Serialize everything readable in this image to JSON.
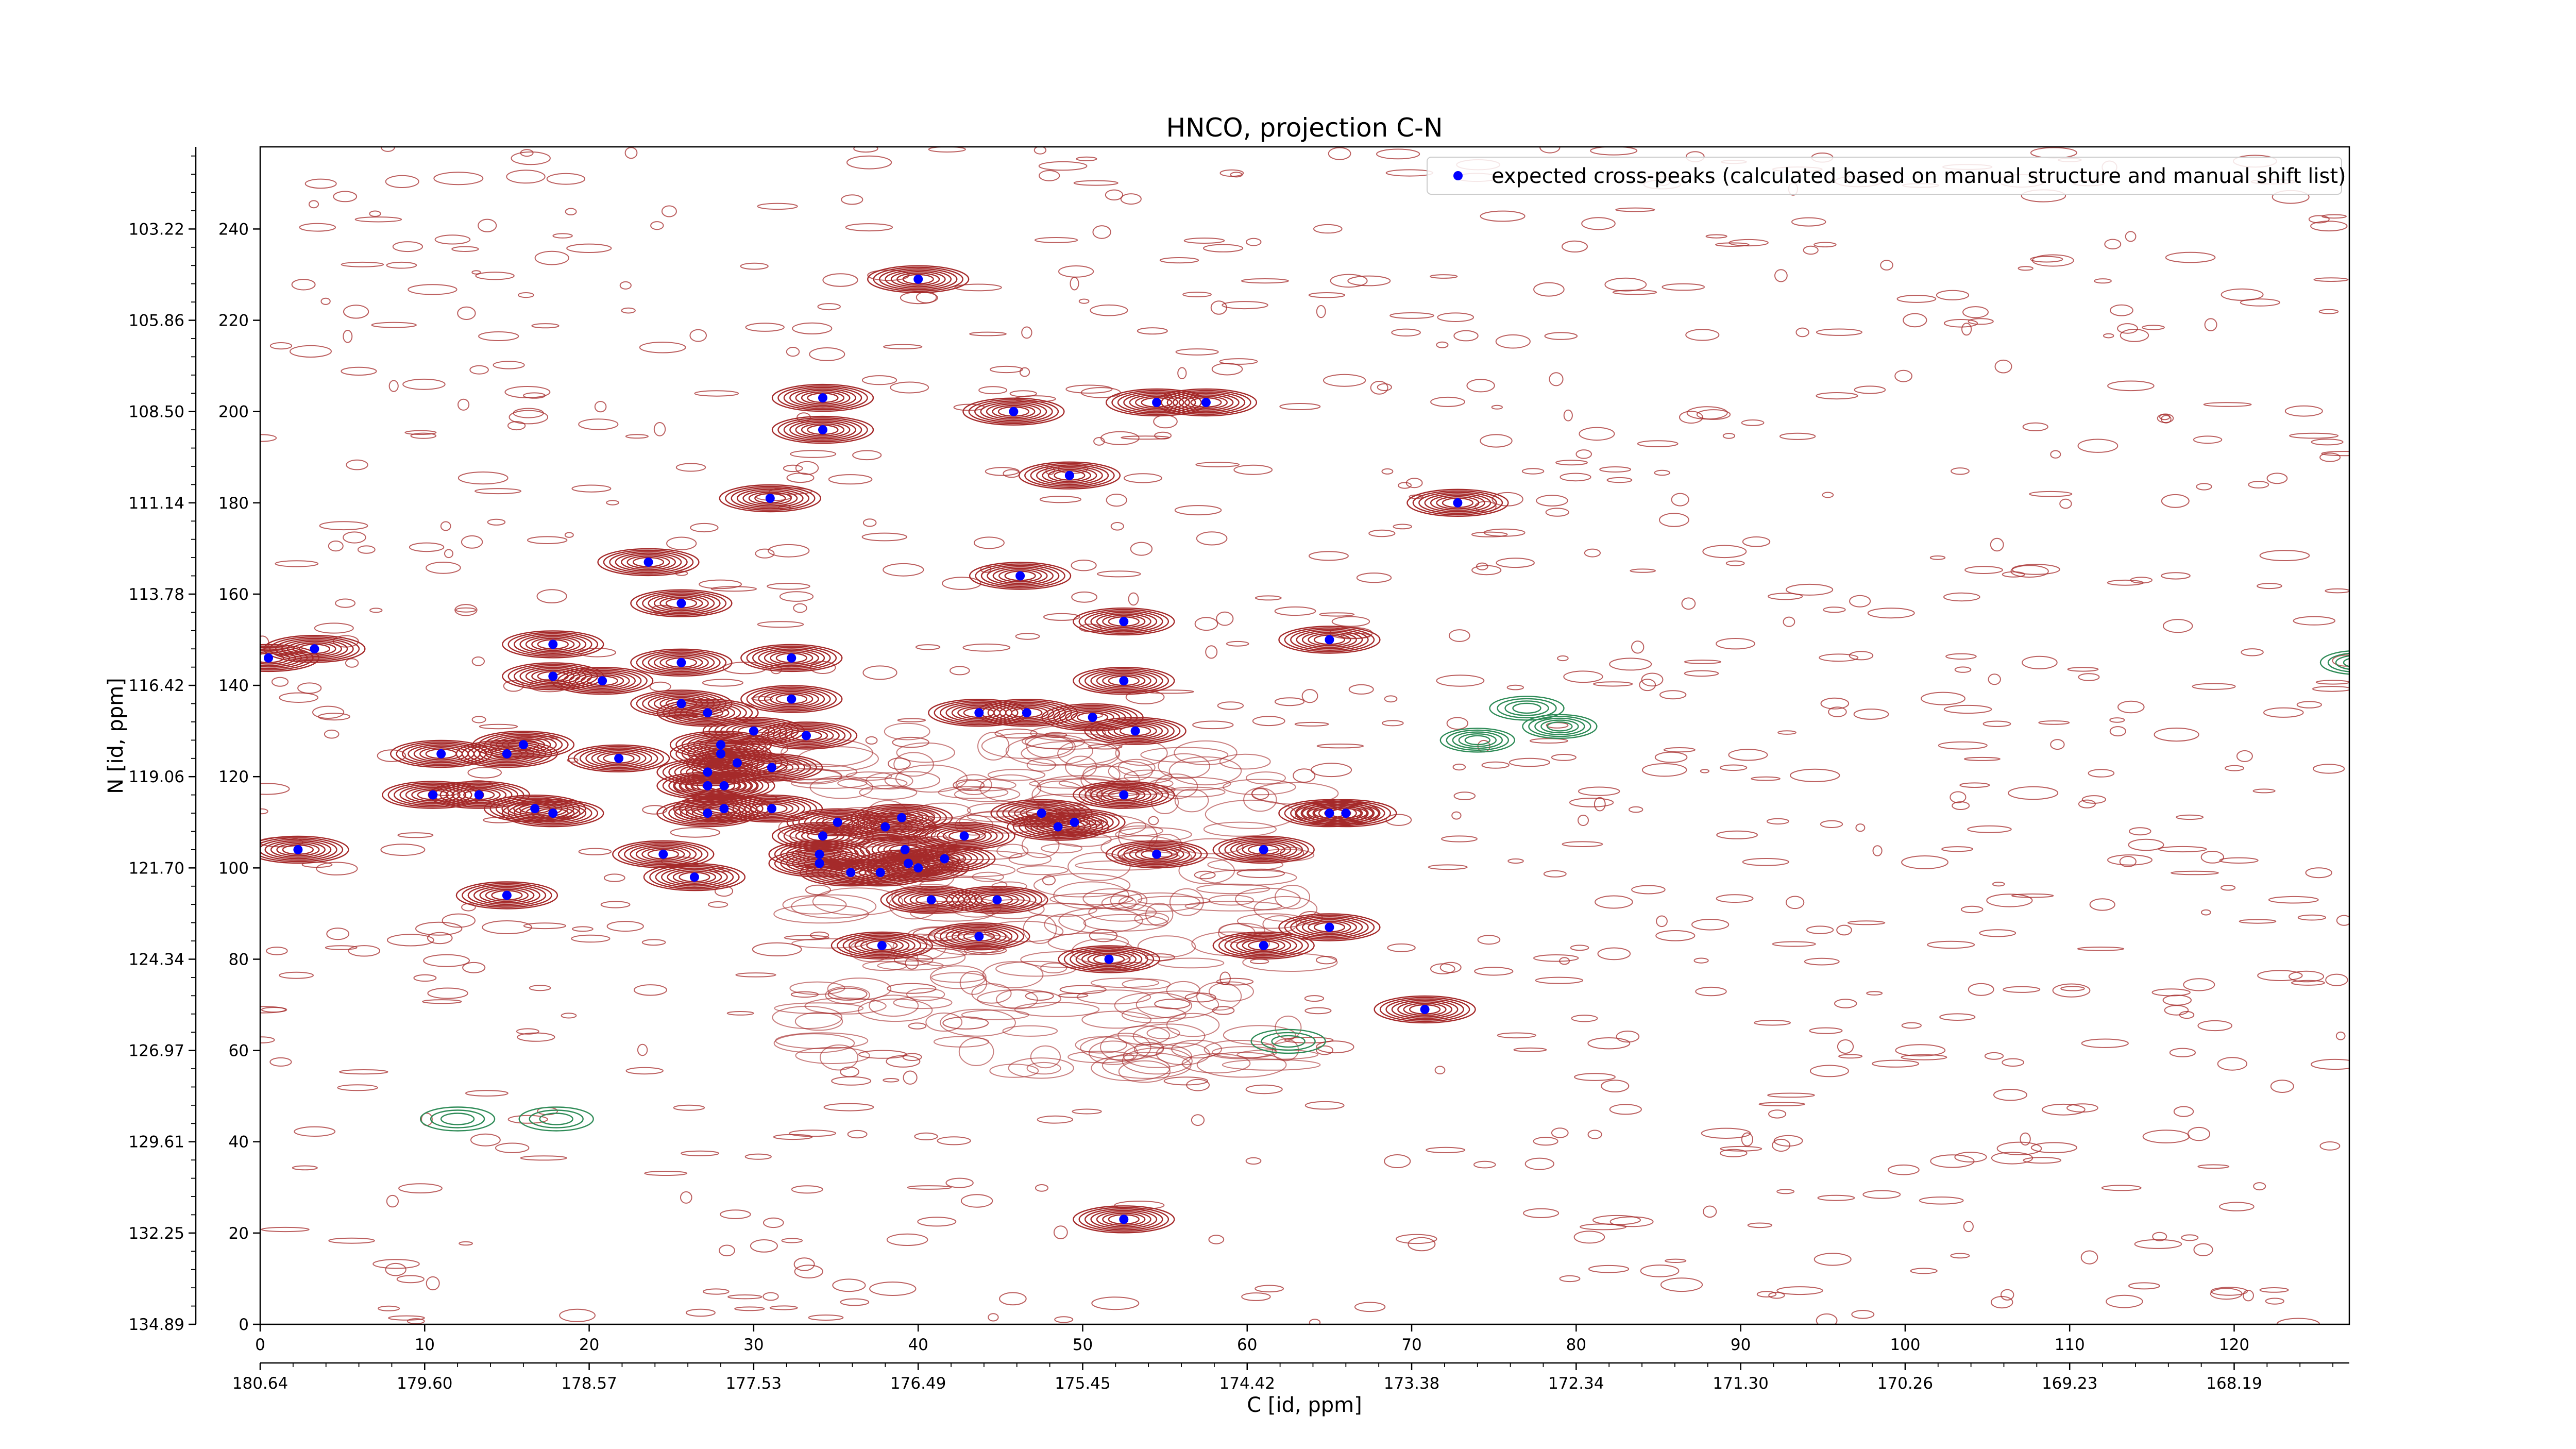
{
  "chart_data": {
    "type": "scatter",
    "title": "HNCO, projection C-N",
    "xlabel": "C [id, ppm]",
    "ylabel": "N [id, ppm]",
    "xlim": [
      0,
      127
    ],
    "ylim": [
      0,
      258
    ],
    "x_ticks_index": [
      "0",
      "10",
      "20",
      "30",
      "40",
      "50",
      "60",
      "70",
      "80",
      "90",
      "100",
      "110",
      "120"
    ],
    "x_ticks_ppm": [
      "180.64",
      "179.60",
      "178.57",
      "177.53",
      "176.49",
      "175.45",
      "174.42",
      "173.38",
      "172.34",
      "171.30",
      "170.26",
      "169.23",
      "168.19"
    ],
    "y_ticks_index": [
      "0",
      "20",
      "40",
      "60",
      "80",
      "100",
      "120",
      "140",
      "160",
      "180",
      "200",
      "220",
      "240"
    ],
    "y_ticks_ppm": [
      "134.89",
      "132.25",
      "129.61",
      "126.97",
      "124.34",
      "121.70",
      "119.06",
      "116.42",
      "113.78",
      "111.14",
      "108.50",
      "105.86",
      "103.22"
    ],
    "legend": {
      "position": "top-right",
      "label": "expected cross-peaks (calculated based on manual structure and manual shift list)"
    },
    "colors": {
      "positive_contours": "#a52a2a",
      "negative_contours": "#2e8b57",
      "markers": "#0000ff"
    },
    "series": [
      {
        "name": "expected cross-peaks (calculated based on manual structure and manual shift list)",
        "points": [
          [
            40.0,
            229
          ],
          [
            34.2,
            203
          ],
          [
            34.2,
            196
          ],
          [
            45.8,
            200
          ],
          [
            49.2,
            186
          ],
          [
            54.5,
            202
          ],
          [
            57.5,
            202
          ],
          [
            31.0,
            181
          ],
          [
            72.8,
            180
          ],
          [
            23.6,
            167
          ],
          [
            25.6,
            158
          ],
          [
            46.2,
            164
          ],
          [
            52.5,
            154
          ],
          [
            65.0,
            150
          ],
          [
            0.5,
            146
          ],
          [
            3.3,
            148
          ],
          [
            17.8,
            149
          ],
          [
            25.6,
            145
          ],
          [
            17.8,
            142
          ],
          [
            20.8,
            141
          ],
          [
            32.3,
            146
          ],
          [
            52.5,
            141
          ],
          [
            32.3,
            137
          ],
          [
            25.6,
            136
          ],
          [
            27.2,
            134
          ],
          [
            43.7,
            134
          ],
          [
            46.6,
            134
          ],
          [
            50.6,
            133
          ],
          [
            30.0,
            130
          ],
          [
            33.2,
            129
          ],
          [
            53.2,
            130
          ],
          [
            11.0,
            125
          ],
          [
            15.0,
            125
          ],
          [
            16.0,
            127
          ],
          [
            21.8,
            124
          ],
          [
            28.0,
            127
          ],
          [
            28.0,
            125
          ],
          [
            29.0,
            123
          ],
          [
            31.1,
            122
          ],
          [
            27.2,
            121
          ],
          [
            27.2,
            118
          ],
          [
            28.2,
            118
          ],
          [
            10.5,
            116
          ],
          [
            13.3,
            116
          ],
          [
            16.7,
            113
          ],
          [
            17.8,
            112
          ],
          [
            27.2,
            112
          ],
          [
            28.2,
            113
          ],
          [
            31.1,
            113
          ],
          [
            52.5,
            116
          ],
          [
            47.5,
            112
          ],
          [
            49.5,
            110
          ],
          [
            48.5,
            109
          ],
          [
            39.0,
            111
          ],
          [
            35.1,
            110
          ],
          [
            34.2,
            107
          ],
          [
            38.0,
            109
          ],
          [
            42.8,
            107
          ],
          [
            2.3,
            104
          ],
          [
            24.5,
            103
          ],
          [
            34.0,
            103
          ],
          [
            34.0,
            101
          ],
          [
            39.2,
            104
          ],
          [
            41.6,
            102
          ],
          [
            39.4,
            101
          ],
          [
            40.0,
            100
          ],
          [
            37.7,
            99
          ],
          [
            35.9,
            99
          ],
          [
            54.5,
            103
          ],
          [
            61.0,
            104
          ],
          [
            65.0,
            112
          ],
          [
            66.0,
            112
          ],
          [
            26.4,
            98
          ],
          [
            15.0,
            94
          ],
          [
            40.8,
            93
          ],
          [
            44.8,
            93
          ],
          [
            65.0,
            87
          ],
          [
            43.7,
            85
          ],
          [
            61.0,
            83
          ],
          [
            37.8,
            83
          ],
          [
            51.6,
            80
          ],
          [
            70.8,
            69
          ],
          [
            52.5,
            23
          ]
        ]
      }
    ]
  }
}
